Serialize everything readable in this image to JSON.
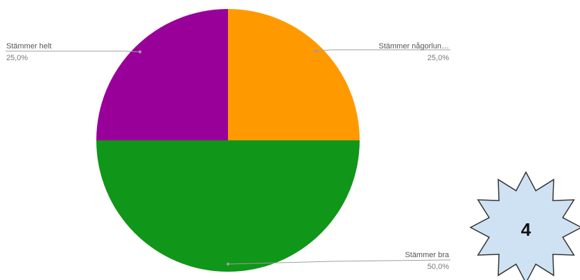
{
  "chart_data": {
    "type": "pie",
    "slices": [
      {
        "label": "Stämmer någorlun…",
        "value": 25.0,
        "percent_label": "25,0%",
        "color": "#ff9900"
      },
      {
        "label": "Stämmer bra",
        "value": 50.0,
        "percent_label": "50,0%",
        "color": "#109618"
      },
      {
        "label": "Stämmer helt",
        "value": 25.0,
        "percent_label": "25,0%",
        "color": "#990099"
      }
    ],
    "start_angle_deg": 0,
    "direction": "clockwise",
    "label_style": "leader-lines"
  },
  "badge": {
    "text": "4",
    "fill": "#cfe2f3",
    "stroke": "#333333",
    "shape": "star-burst"
  }
}
